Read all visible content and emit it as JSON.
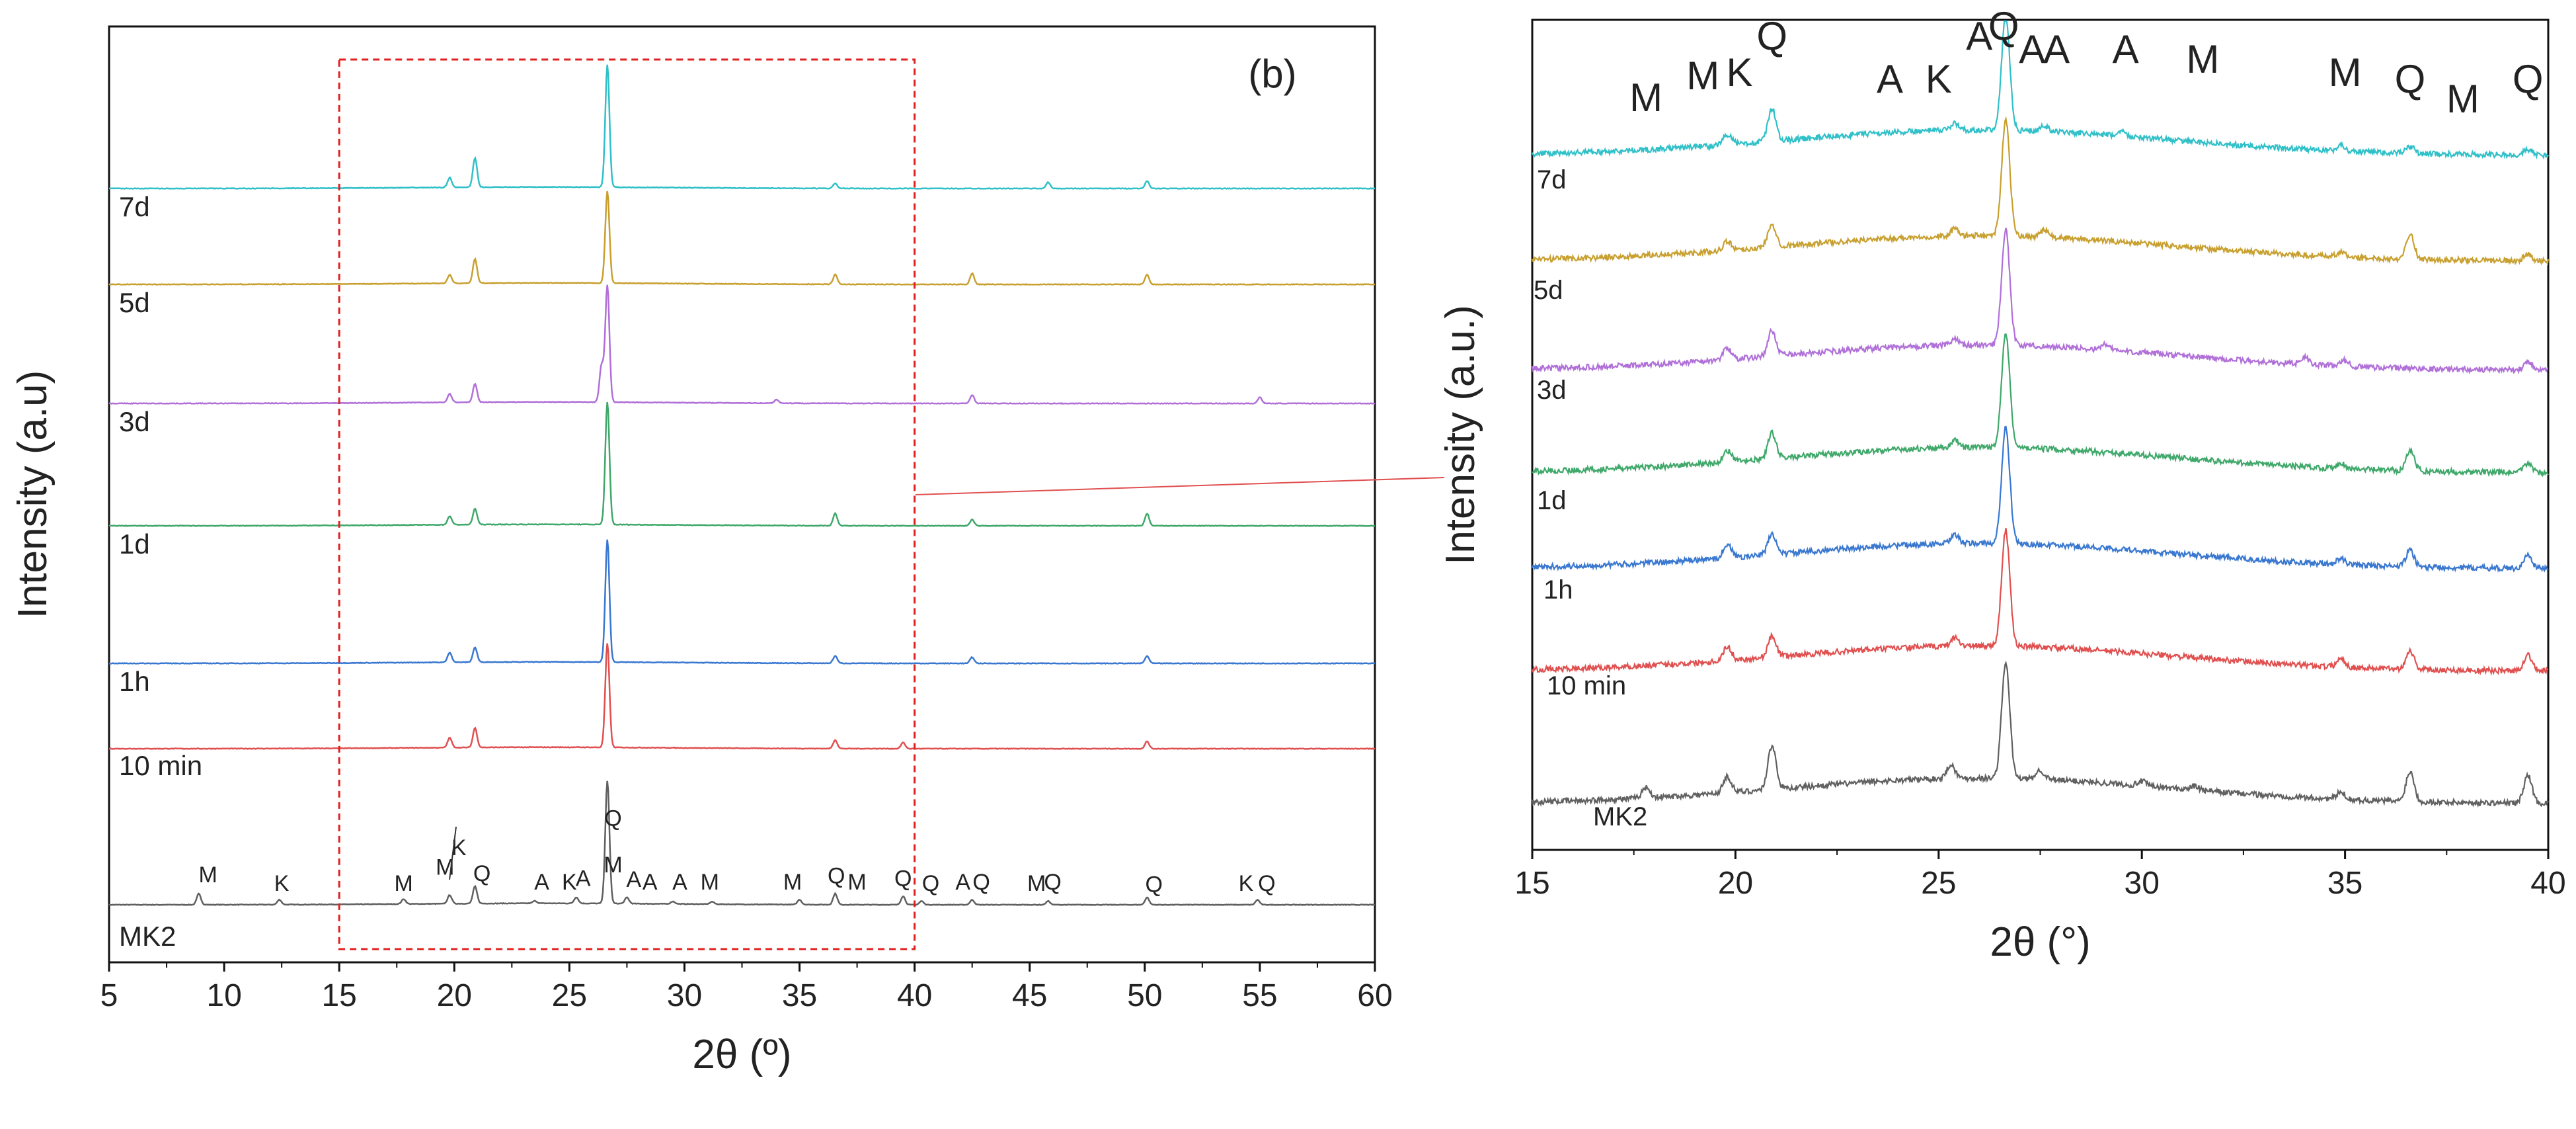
{
  "chart_data": [
    {
      "type": "line",
      "panel_label": "(b)",
      "xlabel": "2θ (º)",
      "ylabel": "Intensity (a.u)",
      "xlim": [
        5,
        60
      ],
      "xticks": [
        "5",
        "10",
        "15",
        "20",
        "25",
        "30",
        "35",
        "40",
        "45",
        "50",
        "55",
        "60"
      ],
      "highlight_box": {
        "x_range": [
          15,
          40
        ]
      },
      "series": [
        {
          "name": "MK2",
          "color": "#606060",
          "peaks": [
            [
              8.9,
              0.09
            ],
            [
              12.4,
              0.04
            ],
            [
              17.8,
              0.04
            ],
            [
              19.8,
              0.07
            ],
            [
              20.9,
              0.14
            ],
            [
              23.5,
              0.02
            ],
            [
              25.3,
              0.05
            ],
            [
              26.65,
              1.0
            ],
            [
              27.5,
              0.05
            ],
            [
              29.5,
              0.02
            ],
            [
              31.2,
              0.02
            ],
            [
              35.0,
              0.04
            ],
            [
              36.55,
              0.09
            ],
            [
              39.5,
              0.07
            ],
            [
              40.3,
              0.03
            ],
            [
              42.5,
              0.04
            ],
            [
              45.8,
              0.03
            ],
            [
              50.1,
              0.06
            ],
            [
              54.9,
              0.04
            ]
          ]
        },
        {
          "name": "10 min",
          "color": "#e05050",
          "peaks": [
            [
              19.8,
              0.08
            ],
            [
              20.9,
              0.16
            ],
            [
              26.65,
              0.85
            ],
            [
              36.55,
              0.07
            ],
            [
              39.5,
              0.05
            ],
            [
              50.1,
              0.06
            ]
          ]
        },
        {
          "name": "1h",
          "color": "#3a78d0",
          "peaks": [
            [
              19.8,
              0.08
            ],
            [
              20.9,
              0.12
            ],
            [
              26.65,
              1.0
            ],
            [
              36.55,
              0.06
            ],
            [
              42.5,
              0.05
            ],
            [
              50.1,
              0.06
            ]
          ]
        },
        {
          "name": "1d",
          "color": "#3fa86a",
          "peaks": [
            [
              19.8,
              0.07
            ],
            [
              20.9,
              0.13
            ],
            [
              26.65,
              1.0
            ],
            [
              36.55,
              0.1
            ],
            [
              42.5,
              0.05
            ],
            [
              50.1,
              0.1
            ]
          ]
        },
        {
          "name": "3d",
          "color": "#b070d8",
          "peaks": [
            [
              19.8,
              0.07
            ],
            [
              20.9,
              0.15
            ],
            [
              26.4,
              0.3
            ],
            [
              26.65,
              0.95
            ],
            [
              34.0,
              0.03
            ],
            [
              42.5,
              0.07
            ],
            [
              55.0,
              0.05
            ]
          ]
        },
        {
          "name": "5d",
          "color": "#c8a030",
          "peaks": [
            [
              19.8,
              0.07
            ],
            [
              20.9,
              0.2
            ],
            [
              26.65,
              0.75
            ],
            [
              36.55,
              0.08
            ],
            [
              42.5,
              0.09
            ],
            [
              50.1,
              0.08
            ]
          ]
        },
        {
          "name": "7d",
          "color": "#30c0c8",
          "peaks": [
            [
              19.8,
              0.08
            ],
            [
              20.9,
              0.24
            ],
            [
              26.65,
              1.0
            ],
            [
              36.55,
              0.04
            ],
            [
              45.8,
              0.05
            ],
            [
              50.1,
              0.06
            ]
          ]
        }
      ],
      "annotations": [
        {
          "text": "M",
          "x": 9.3,
          "level": 0.12
        },
        {
          "text": "K",
          "x": 12.5,
          "level": 0.05
        },
        {
          "text": "M",
          "x": 17.8,
          "level": 0.05
        },
        {
          "text": "M",
          "x": 19.6,
          "level": 0.18
        },
        {
          "text": "K",
          "x": 20.2,
          "level": 0.34
        },
        {
          "text": "Q",
          "x": 21.2,
          "level": 0.13
        },
        {
          "text": "A",
          "x": 23.8,
          "level": 0.06
        },
        {
          "text": "K",
          "x": 25.0,
          "level": 0.06
        },
        {
          "text": "A",
          "x": 25.6,
          "level": 0.09
        },
        {
          "text": "Q",
          "x": 26.9,
          "level": 0.58
        },
        {
          "text": "M",
          "x": 26.9,
          "level": 0.2
        },
        {
          "text": "A",
          "x": 27.8,
          "level": 0.08
        },
        {
          "text": "A",
          "x": 28.5,
          "level": 0.06
        },
        {
          "text": "A",
          "x": 29.8,
          "level": 0.06
        },
        {
          "text": "M",
          "x": 31.1,
          "level": 0.06
        },
        {
          "text": "M",
          "x": 34.7,
          "level": 0.06
        },
        {
          "text": "Q",
          "x": 36.6,
          "level": 0.11
        },
        {
          "text": "M",
          "x": 37.5,
          "level": 0.06
        },
        {
          "text": "Q",
          "x": 39.5,
          "level": 0.09
        },
        {
          "text": "Q",
          "x": 40.7,
          "level": 0.05
        },
        {
          "text": "A",
          "x": 42.1,
          "level": 0.06
        },
        {
          "text": "Q",
          "x": 42.9,
          "level": 0.06
        },
        {
          "text": "M",
          "x": 45.3,
          "level": 0.05
        },
        {
          "text": "Q",
          "x": 46.0,
          "level": 0.06
        },
        {
          "text": "Q",
          "x": 50.4,
          "level": 0.04
        },
        {
          "text": "K",
          "x": 54.4,
          "level": 0.05
        },
        {
          "text": "Q",
          "x": 55.3,
          "level": 0.05
        }
      ]
    },
    {
      "type": "line",
      "xlabel": "2θ (°)",
      "ylabel": "Intensity (a.u.)",
      "xlim": [
        15,
        40
      ],
      "xticks": [
        "15",
        "20",
        "25",
        "30",
        "35",
        "40"
      ],
      "series": [
        {
          "name": "MK2",
          "color": "#606060",
          "peaks": [
            [
              17.8,
              0.22
            ],
            [
              19.8,
              0.35
            ],
            [
              20.9,
              0.95
            ],
            [
              25.3,
              0.3
            ],
            [
              26.65,
              2.5
            ],
            [
              27.5,
              0.2
            ],
            [
              30.0,
              0.1
            ],
            [
              31.3,
              0.08
            ],
            [
              34.9,
              0.15
            ],
            [
              36.6,
              0.65
            ],
            [
              39.5,
              0.6
            ]
          ]
        },
        {
          "name": "10 min",
          "color": "#e05050",
          "peaks": [
            [
              19.8,
              0.3
            ],
            [
              20.9,
              0.45
            ],
            [
              25.4,
              0.18
            ],
            [
              26.65,
              2.5
            ],
            [
              34.9,
              0.18
            ],
            [
              36.6,
              0.4
            ],
            [
              39.5,
              0.35
            ]
          ]
        },
        {
          "name": "1h",
          "color": "#3a78d0",
          "peaks": [
            [
              19.8,
              0.3
            ],
            [
              20.9,
              0.45
            ],
            [
              25.4,
              0.18
            ],
            [
              26.65,
              2.5
            ],
            [
              34.9,
              0.12
            ],
            [
              36.6,
              0.35
            ],
            [
              39.5,
              0.28
            ]
          ]
        },
        {
          "name": "1d",
          "color": "#3fa86a",
          "peaks": [
            [
              19.8,
              0.25
            ],
            [
              20.9,
              0.55
            ],
            [
              25.4,
              0.15
            ],
            [
              26.65,
              2.5
            ],
            [
              34.9,
              0.12
            ],
            [
              36.6,
              0.45
            ],
            [
              39.5,
              0.2
            ]
          ]
        },
        {
          "name": "3d",
          "color": "#b070d8",
          "peaks": [
            [
              19.8,
              0.25
            ],
            [
              20.9,
              0.55
            ],
            [
              25.4,
              0.12
            ],
            [
              26.65,
              2.5
            ],
            [
              29.1,
              0.12
            ],
            [
              34.0,
              0.15
            ],
            [
              35.0,
              0.12
            ],
            [
              39.5,
              0.18
            ]
          ]
        },
        {
          "name": "5d",
          "color": "#c8a030",
          "peaks": [
            [
              19.8,
              0.2
            ],
            [
              20.9,
              0.5
            ],
            [
              25.4,
              0.15
            ],
            [
              26.65,
              2.5
            ],
            [
              27.6,
              0.15
            ],
            [
              34.9,
              0.1
            ],
            [
              36.6,
              0.55
            ],
            [
              39.5,
              0.15
            ]
          ]
        },
        {
          "name": "7d",
          "color": "#30c0c8",
          "peaks": [
            [
              19.8,
              0.22
            ],
            [
              20.9,
              0.7
            ],
            [
              25.4,
              0.15
            ],
            [
              26.65,
              2.5
            ],
            [
              27.6,
              0.12
            ],
            [
              29.5,
              0.1
            ],
            [
              34.9,
              0.12
            ],
            [
              36.6,
              0.15
            ],
            [
              39.5,
              0.12
            ]
          ]
        }
      ],
      "annotations": [
        {
          "text": "M",
          "x": 17.8
        },
        {
          "text": "M",
          "x": 19.2
        },
        {
          "text": "K",
          "x": 20.1
        },
        {
          "text": "Q",
          "x": 20.9
        },
        {
          "text": "A",
          "x": 23.8
        },
        {
          "text": "K",
          "x": 25.0
        },
        {
          "text": "A",
          "x": 26.0
        },
        {
          "text": "Q",
          "x": 26.6
        },
        {
          "text": "A",
          "x": 27.3
        },
        {
          "text": "A",
          "x": 27.9
        },
        {
          "text": "A",
          "x": 29.6
        },
        {
          "text": "M",
          "x": 31.5
        },
        {
          "text": "M",
          "x": 35.0
        },
        {
          "text": "Q",
          "x": 36.6
        },
        {
          "text": "M",
          "x": 37.9
        },
        {
          "text": "Q",
          "x": 39.5
        }
      ]
    }
  ]
}
